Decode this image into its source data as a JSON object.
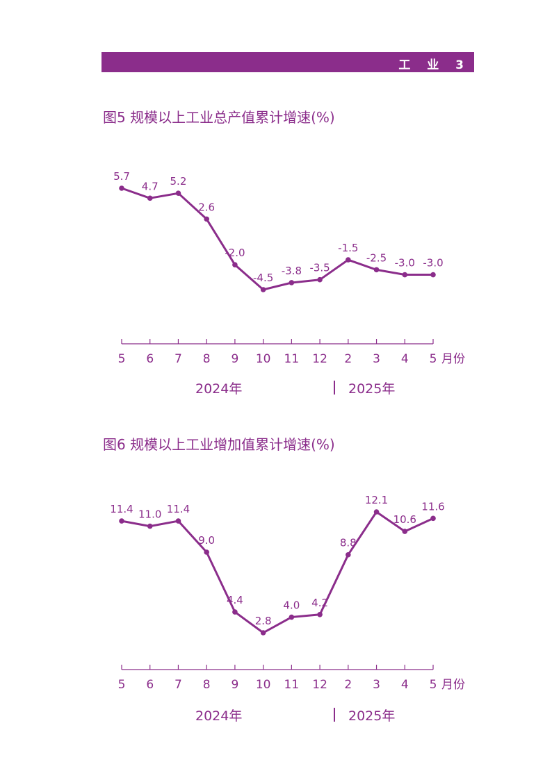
{
  "header": {
    "text": "工 业 3"
  },
  "colors": {
    "accent": "#8b2d8b",
    "line": "#8b2d8b",
    "text": "#8b2d8b"
  },
  "charts": {
    "chart5": {
      "title": "图5  规模以上工业总产值累计增速(%)"
    },
    "chart6": {
      "title": "图6  规模以上工业增加值累计增速(%)"
    }
  },
  "axis": {
    "unit": "月份",
    "year1": "2024年",
    "year2": "2025年"
  },
  "chart_data": [
    {
      "type": "line",
      "title": "图5  规模以上工业总产值累计增速(%)",
      "categories": [
        "5",
        "6",
        "7",
        "8",
        "9",
        "10",
        "11",
        "12",
        "2",
        "3",
        "4",
        "5"
      ],
      "xlabel": "月份",
      "groups": [
        "2024年",
        "2025年"
      ],
      "ylim": [
        -8,
        7
      ],
      "series": [
        {
          "values": [
            5.7,
            4.7,
            5.2,
            2.6,
            -2.0,
            -4.5,
            -3.8,
            -3.5,
            -1.5,
            -2.5,
            -3.0,
            -3.0
          ],
          "labels": [
            "5.7",
            "4.7",
            "5.2",
            "2.6",
            "-2.0",
            "-4.5",
            "-3.8",
            "-3.5",
            "-1.5",
            "-2.5",
            "-3.0",
            "-3.0"
          ]
        }
      ]
    },
    {
      "type": "line",
      "title": "图6  规模以上工业增加值累计增速(%)",
      "categories": [
        "5",
        "6",
        "7",
        "8",
        "9",
        "10",
        "11",
        "12",
        "2",
        "3",
        "4",
        "5"
      ],
      "xlabel": "月份",
      "groups": [
        "2024年",
        "2025年"
      ],
      "ylim": [
        0,
        14
      ],
      "series": [
        {
          "values": [
            11.4,
            11.0,
            11.4,
            9.0,
            4.4,
            2.8,
            4.0,
            4.2,
            8.8,
            12.1,
            10.6,
            11.6
          ],
          "labels": [
            "11.4",
            "11.0",
            "11.4",
            "9.0",
            "4.4",
            "2.8",
            "4.0",
            "4.2",
            "8.8",
            "12.1",
            "10.6",
            "11.6"
          ]
        }
      ]
    }
  ]
}
